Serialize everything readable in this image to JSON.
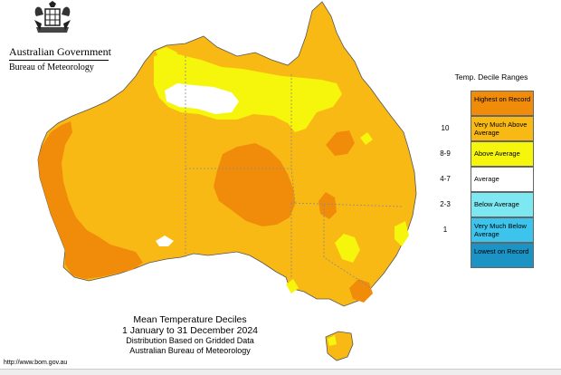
{
  "header": {
    "government": "Australian Government",
    "bureau": "Bureau of Meteorology"
  },
  "legend": {
    "title": "Temp. Decile Ranges",
    "items": [
      {
        "range": "",
        "label": "Highest on Record",
        "color": "#f08c0a"
      },
      {
        "range": "10",
        "label": "Very Much Above Average",
        "color": "#f9b914"
      },
      {
        "range": "8-9",
        "label": "Above Average",
        "color": "#f6f50c"
      },
      {
        "range": "4-7",
        "label": "Average",
        "color": "#ffffff"
      },
      {
        "range": "2-3",
        "label": "Below Average",
        "color": "#7ee8f2"
      },
      {
        "range": "1",
        "label": "Very Much Below Average",
        "color": "#3cc4ec"
      },
      {
        "range": "",
        "label": "Lowest on Record",
        "color": "#1b93c5"
      }
    ]
  },
  "caption": {
    "title": "Mean Temperature Deciles",
    "period": "1 January to 31 December 2024",
    "basis": "Distribution Based on Gridded Data",
    "agency": "Australian Bureau of Meteorology"
  },
  "url": "http://www.bom.gov.au",
  "colors": {
    "highest": "#f08c0a",
    "very_much_above": "#f9b914",
    "above": "#f6f50c",
    "average": "#ffffff",
    "border": "#8a8a8a"
  }
}
